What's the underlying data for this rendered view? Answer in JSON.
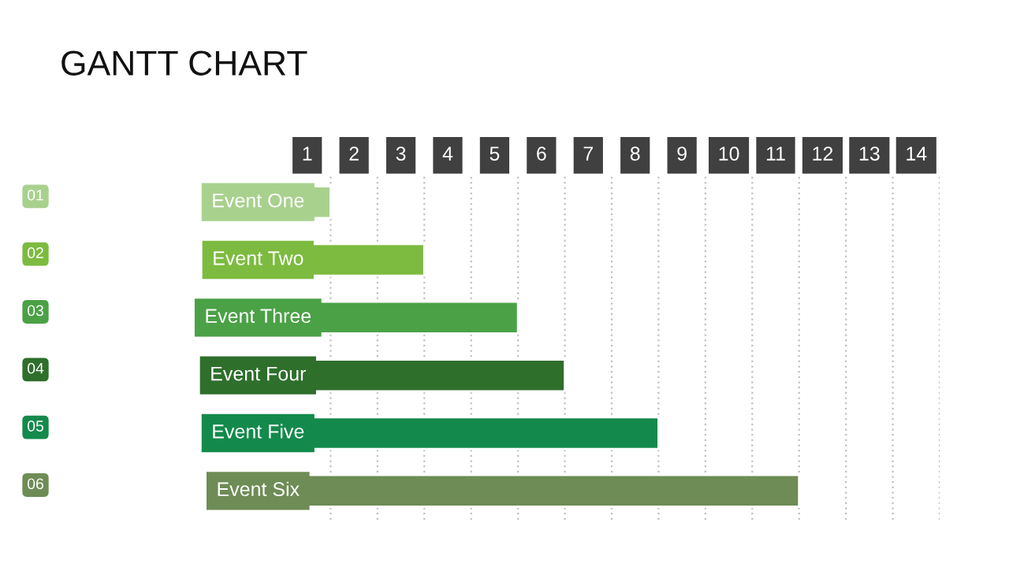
{
  "chart_data": {
    "type": "bar",
    "orientation": "horizontal",
    "title": "GANTT CHART",
    "categories": [
      "Event One",
      "Event Two",
      "Event Three",
      "Event Four",
      "Event Five",
      "Event Six"
    ],
    "values": [
      1,
      3,
      5,
      6,
      8,
      11
    ],
    "colors": [
      "#a9d18e",
      "#7cbb3f",
      "#4ba146",
      "#2e6f2c",
      "#138a4b",
      "#6e8c55"
    ],
    "annotations": [
      "01",
      "02",
      "03",
      "04",
      "05",
      "06"
    ],
    "xlim": [
      0,
      14
    ],
    "xticks": [
      {
        "value": 0.5,
        "label": "1"
      },
      {
        "value": 1.5,
        "label": "2"
      },
      {
        "value": 2.5,
        "label": "3"
      },
      {
        "value": 3.5,
        "label": "4"
      },
      {
        "value": 4.5,
        "label": "5"
      },
      {
        "value": 5.5,
        "label": "6"
      },
      {
        "value": 6.5,
        "label": "7"
      },
      {
        "value": 7.5,
        "label": "8"
      },
      {
        "value": 8.5,
        "label": "9"
      },
      {
        "value": 9.5,
        "label": "10"
      },
      {
        "value": 10.5,
        "label": "11"
      },
      {
        "value": 11.5,
        "label": "12"
      },
      {
        "value": 12.5,
        "label": "13"
      },
      {
        "value": 13.5,
        "label": "14"
      },
      {
        "value": 1,
        "label": null
      },
      {
        "value": 2,
        "label": null
      },
      {
        "value": 3,
        "label": null
      },
      {
        "value": 4,
        "label": null
      },
      {
        "value": 5,
        "label": null
      },
      {
        "value": 6,
        "label": null
      },
      {
        "value": 7,
        "label": null
      },
      {
        "value": 8,
        "label": null
      },
      {
        "value": 9,
        "label": null
      },
      {
        "value": 10,
        "label": null
      },
      {
        "value": 11,
        "label": null
      },
      {
        "value": 12,
        "label": null
      },
      {
        "value": 13,
        "label": null
      },
      {
        "value": 14,
        "label": null
      }
    ],
    "grid": "x",
    "legend": false
  }
}
